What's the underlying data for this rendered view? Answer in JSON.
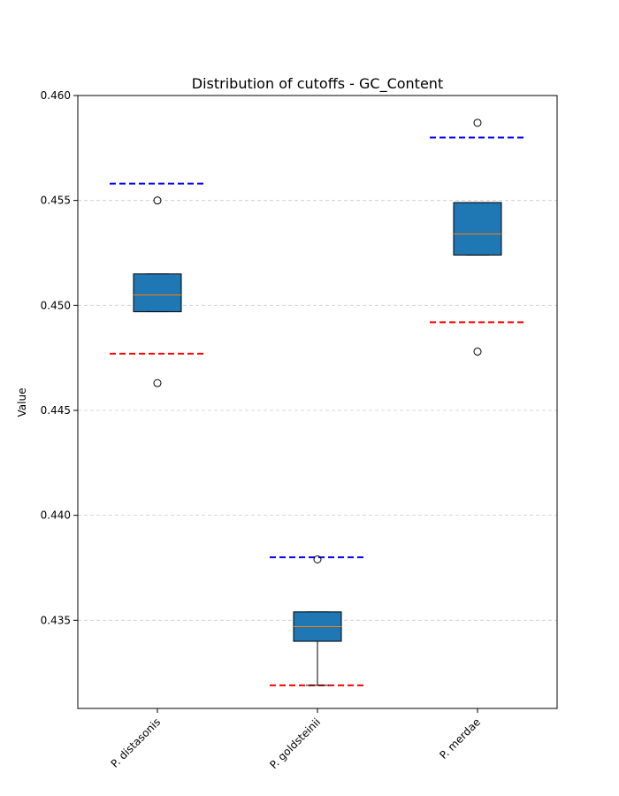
{
  "chart_data": {
    "type": "box",
    "title": "Distribution of cutoffs - GC_Content",
    "xlabel": "",
    "ylabel": "Value",
    "ylim": [
      0.4308,
      0.46
    ],
    "yticks": [
      "0.435",
      "0.440",
      "0.445",
      "0.450",
      "0.455",
      "0.460"
    ],
    "ytick_values": [
      0.435,
      0.44,
      0.445,
      0.45,
      0.455,
      0.46
    ],
    "grid": "horizontal dashed",
    "categories": [
      "P. distasonis",
      "P. goldsteinii",
      "P. merdae"
    ],
    "boxes": [
      {
        "q1": 0.4497,
        "median": 0.4505,
        "q3": 0.4515,
        "whisker_low": 0.4497,
        "whisker_high": 0.4515,
        "outliers": [
          0.455,
          0.4463
        ],
        "upper_cutoff": 0.4558,
        "lower_cutoff": 0.4477
      },
      {
        "q1": 0.434,
        "median": 0.4347,
        "q3": 0.4354,
        "whisker_low": 0.4319,
        "whisker_high": 0.4354,
        "outliers": [
          0.4379
        ],
        "upper_cutoff": 0.438,
        "lower_cutoff": 0.4319
      },
      {
        "q1": 0.4524,
        "median": 0.4534,
        "q3": 0.4549,
        "whisker_low": 0.4524,
        "whisker_high": 0.4549,
        "outliers": [
          0.4587,
          0.4478
        ],
        "upper_cutoff": 0.458,
        "lower_cutoff": 0.4492
      }
    ],
    "colors": {
      "box_fill": "#1f77b4",
      "median": "#ff7f0e",
      "upper_cutoff": "#0000ff",
      "lower_cutoff": "#ff0000",
      "grid": "#cccccc"
    }
  }
}
